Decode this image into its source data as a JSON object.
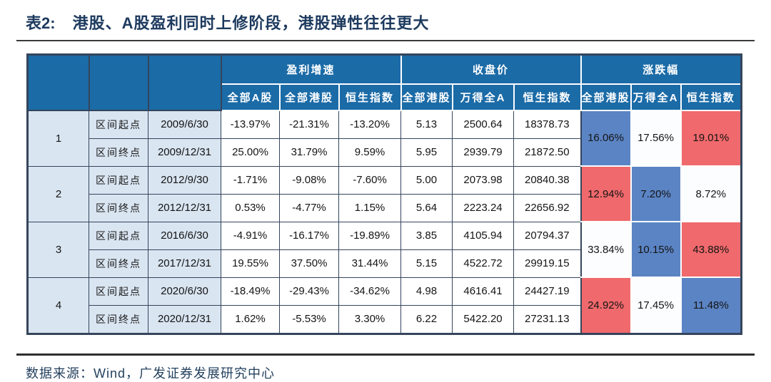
{
  "title": {
    "prefix": "表2:",
    "text": "港股、A股盈利同时上修阶段，港股弹性往往更大"
  },
  "source": "数据来源：Wind，广发证券发展研究中心",
  "colors": {
    "header_bg": "#1b6ba7",
    "light_blue_bg": "#d9e5f1",
    "highlight": {
      "red": "#f0696c",
      "blue": "#5b84c4",
      "white": "#fbfdff"
    },
    "title_text": "#1d3a5e",
    "border": "#35455c"
  },
  "table": {
    "col_groups": [
      {
        "label": "盈利增速",
        "cols": [
          "全部A股",
          "全部港股",
          "恒生指数"
        ]
      },
      {
        "label": "收盘价",
        "cols": [
          "全部港股",
          "万得全A",
          "恒生指数"
        ]
      },
      {
        "label": "涨跌幅",
        "cols": [
          "全部港股",
          "万得全A",
          "恒生指数"
        ]
      }
    ],
    "groups": [
      {
        "id": "1",
        "rows": [
          {
            "label": "区间起点",
            "date": "2009/6/30",
            "earnings": [
              "-13.97%",
              "-21.31%",
              "-13.20%"
            ],
            "close": [
              "5.13",
              "2500.64",
              "18378.73"
            ]
          },
          {
            "label": "区间终点",
            "date": "2009/12/31",
            "earnings": [
              "25.00%",
              "31.79%",
              "9.59%"
            ],
            "close": [
              "5.95",
              "2939.79",
              "21872.50"
            ]
          }
        ],
        "change": [
          {
            "value": "16.06%",
            "color": "blue"
          },
          {
            "value": "17.56%",
            "color": "white"
          },
          {
            "value": "19.01%",
            "color": "red"
          }
        ]
      },
      {
        "id": "2",
        "rows": [
          {
            "label": "区间起点",
            "date": "2012/9/30",
            "earnings": [
              "-1.71%",
              "-9.08%",
              "-7.60%"
            ],
            "close": [
              "5.00",
              "2073.98",
              "20840.38"
            ]
          },
          {
            "label": "区间终点",
            "date": "2012/12/31",
            "earnings": [
              "0.53%",
              "-4.77%",
              "1.15%"
            ],
            "close": [
              "5.64",
              "2223.24",
              "22656.92"
            ]
          }
        ],
        "change": [
          {
            "value": "12.94%",
            "color": "red"
          },
          {
            "value": "7.20%",
            "color": "blue"
          },
          {
            "value": "8.72%",
            "color": "white"
          }
        ]
      },
      {
        "id": "3",
        "rows": [
          {
            "label": "区间起点",
            "date": "2016/6/30",
            "earnings": [
              "-4.91%",
              "-16.17%",
              "-19.89%"
            ],
            "close": [
              "3.85",
              "4105.94",
              "20794.37"
            ]
          },
          {
            "label": "区间终点",
            "date": "2017/12/31",
            "earnings": [
              "19.55%",
              "37.50%",
              "31.44%"
            ],
            "close": [
              "5.15",
              "4522.72",
              "29919.15"
            ]
          }
        ],
        "change": [
          {
            "value": "33.84%",
            "color": "white"
          },
          {
            "value": "10.15%",
            "color": "blue"
          },
          {
            "value": "43.88%",
            "color": "red"
          }
        ]
      },
      {
        "id": "4",
        "rows": [
          {
            "label": "区间起点",
            "date": "2020/6/30",
            "earnings": [
              "-18.49%",
              "-29.43%",
              "-34.62%"
            ],
            "close": [
              "4.98",
              "4616.41",
              "24427.19"
            ]
          },
          {
            "label": "区间终点",
            "date": "2020/12/31",
            "earnings": [
              "1.62%",
              "-5.53%",
              "3.30%"
            ],
            "close": [
              "6.22",
              "5422.20",
              "27231.13"
            ]
          }
        ],
        "change": [
          {
            "value": "24.92%",
            "color": "red"
          },
          {
            "value": "17.45%",
            "color": "white"
          },
          {
            "value": "11.48%",
            "color": "blue"
          }
        ]
      }
    ]
  }
}
